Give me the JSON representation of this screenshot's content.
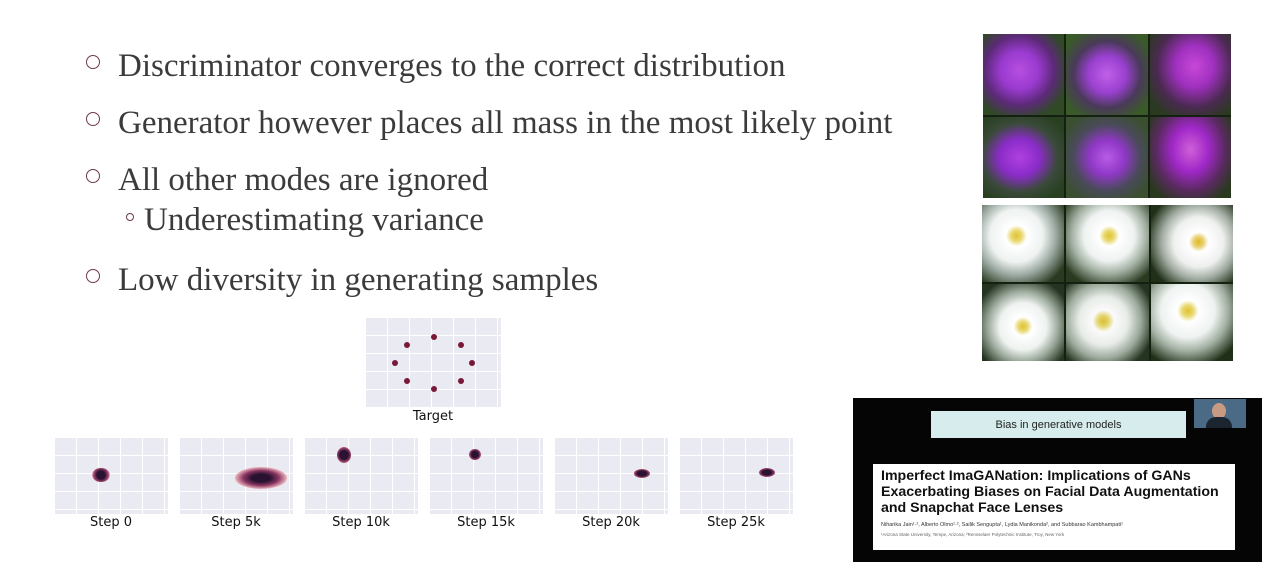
{
  "bullets": [
    "Discriminator converges to the correct distribution",
    "Generator however places all mass in the most likely point",
    "All other modes are ignored",
    "Low diversity in generating samples"
  ],
  "sub_bullets": [
    "Underestimating variance"
  ],
  "mode_collapse_figure": {
    "target_label": "Target",
    "steps": [
      "Step 0",
      "Step 5k",
      "Step 10k",
      "Step 15k",
      "Step 20k",
      "Step 25k"
    ]
  },
  "generated_images": {
    "top_grid": "purple-flower-samples",
    "bottom_grid": "white-flower-samples"
  },
  "video_slide": {
    "banner": "Bias in generative models",
    "paper_title": "Imperfect ImaGANation: Implications of GANs\nExacerbating Biases on Facial Data Augmentation\nand Snapchat Face Lenses",
    "paper_authors": "Niharika Jain¹·², Alberto Olmo¹·², Sailik Sengupta¹, Lydia Manikonda², and Subbarao Kambhampati¹",
    "paper_affiliations": "¹Arizona State University, Tempe, Arizona; ²Rensselaer Polytechnic Institute, Troy, New York"
  },
  "colors": {
    "bullet_marker": "#6d3850",
    "text": "#3b3b3b",
    "plot_bg": "#eaeaf2",
    "blob": "#2a1233"
  }
}
